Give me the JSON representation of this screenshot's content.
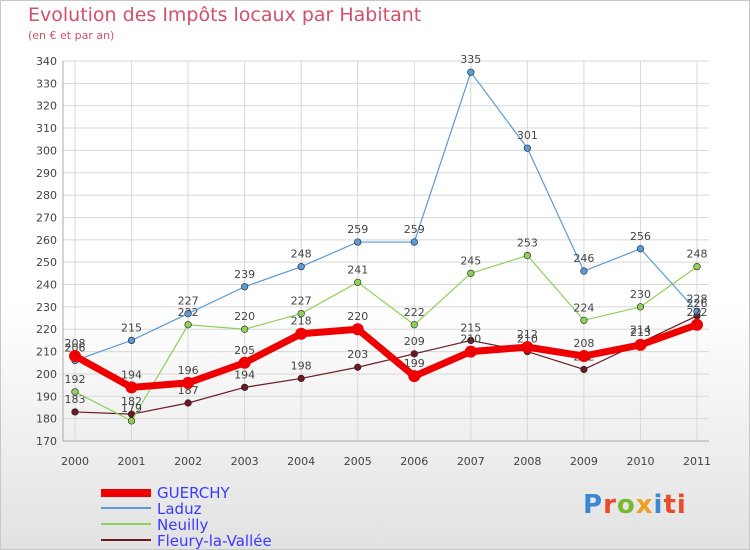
{
  "chart_data": {
    "type": "line",
    "title": "Evolution des Impôts locaux par Habitant",
    "subtitle": "(en € et par an)",
    "categories": [
      "2000",
      "2001",
      "2002",
      "2003",
      "2004",
      "2005",
      "2006",
      "2007",
      "2008",
      "2009",
      "2010",
      "2011"
    ],
    "ylim": [
      170,
      340
    ],
    "yticks": [
      170,
      180,
      190,
      200,
      210,
      220,
      230,
      240,
      250,
      260,
      270,
      280,
      290,
      300,
      310,
      320,
      330,
      340
    ],
    "grid": true,
    "legend_position": "bottom-left",
    "series": [
      {
        "name": "Fleury-la-Vallée",
        "color": "#6b1a22",
        "values": [
          183,
          182,
          187,
          194,
          198,
          203,
          209,
          215,
          210,
          202,
          214,
          226
        ]
      },
      {
        "name": "Neuilly",
        "color": "#8ed05a",
        "values": [
          192,
          179,
          222,
          220,
          227,
          241,
          222,
          245,
          253,
          224,
          230,
          248
        ]
      },
      {
        "name": "Laduz",
        "color": "#5a9ad6",
        "values": [
          206,
          215,
          227,
          239,
          248,
          259,
          259,
          335,
          301,
          246,
          256,
          228
        ]
      },
      {
        "name": "GUERCHY",
        "color": "#ee0000",
        "values": [
          208,
          194,
          196,
          205,
          218,
          220,
          199,
          210,
          212,
          208,
          213,
          222
        ]
      }
    ]
  },
  "legend": [
    {
      "name": "GUERCHY",
      "color": "#ee0000"
    },
    {
      "name": "Laduz",
      "color": "#5a9ad6"
    },
    {
      "name": "Neuilly",
      "color": "#8ed05a"
    },
    {
      "name": "Fleury-la-Vallée",
      "color": "#6b1a22"
    }
  ],
  "logo": {
    "p1": "P",
    "p2": "r",
    "p3": "o",
    "p4": "x",
    "p5": "i",
    "p6": "ti"
  }
}
